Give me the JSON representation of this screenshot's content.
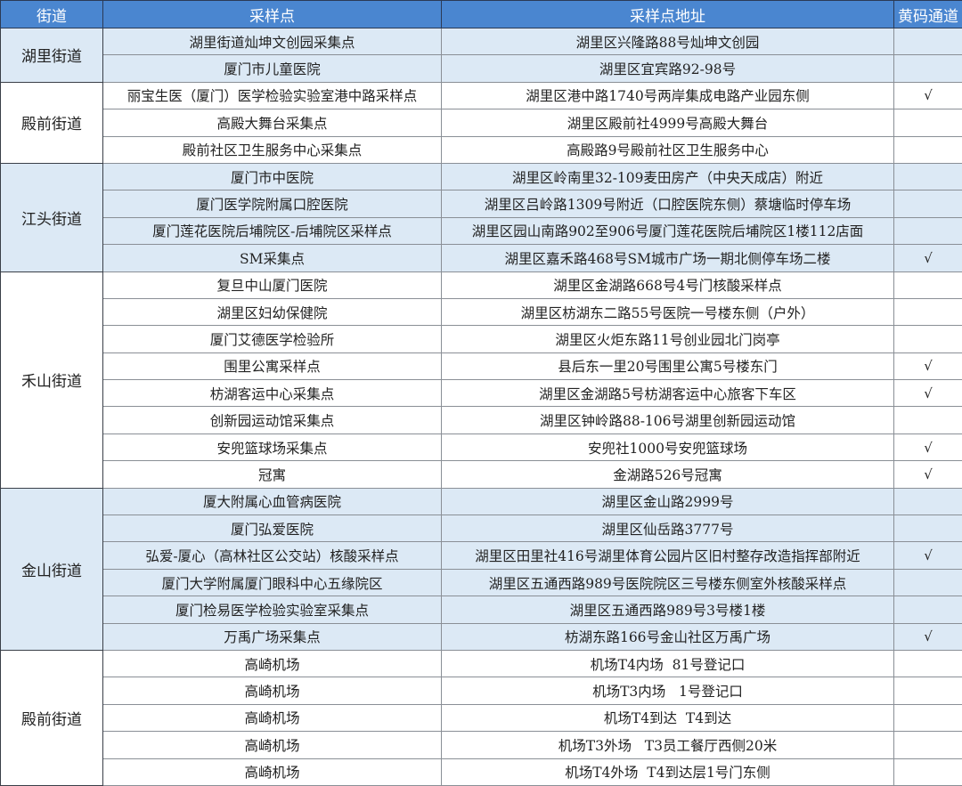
{
  "header": {
    "street": "街道",
    "site": "采样点",
    "address": "采样点地址",
    "yellow_code": "黄码通道"
  },
  "colors": {
    "header_bg": "#4a86d0",
    "highlight_bg": "#dce9f5"
  },
  "check_mark": "√",
  "groups": [
    {
      "street": "湖里街道",
      "highlight": true,
      "rows": [
        {
          "site": "湖里街道灿坤文创园采集点",
          "address": "湖里区兴隆路88号灿坤文创园",
          "yellow": false
        },
        {
          "site": "厦门市儿童医院",
          "address": "湖里区宜宾路92-98号",
          "yellow": false
        }
      ]
    },
    {
      "street": "殿前街道",
      "highlight": false,
      "rows": [
        {
          "site": "丽宝生医（厦门）医学检验实验室港中路采样点",
          "address": "湖里区港中路1740号两岸集成电路产业园东侧",
          "yellow": true
        },
        {
          "site": "高殿大舞台采集点",
          "address": "湖里区殿前社4999号高殿大舞台",
          "yellow": false
        },
        {
          "site": "殿前社区卫生服务中心采集点",
          "address": "高殿路9号殿前社区卫生服务中心",
          "yellow": false
        }
      ]
    },
    {
      "street": "江头街道",
      "highlight": true,
      "rows": [
        {
          "site": "厦门市中医院",
          "address": "湖里区岭南里32-109麦田房产（中央天成店）附近",
          "yellow": false
        },
        {
          "site": "厦门医学院附属口腔医院",
          "address": "湖里区吕岭路1309号附近（口腔医院东侧）蔡塘临时停车场",
          "yellow": false
        },
        {
          "site": "厦门莲花医院后埔院区-后埔院区采样点",
          "address": "湖里区园山南路902至906号厦门莲花医院后埔院区1楼112店面",
          "yellow": false
        },
        {
          "site": "SM采集点",
          "address": "湖里区嘉禾路468号SM城市广场一期北侧停车场二楼",
          "yellow": true
        }
      ]
    },
    {
      "street": "禾山街道",
      "highlight": false,
      "rows": [
        {
          "site": "复旦中山厦门医院",
          "address": "湖里区金湖路668号4号门核酸采样点",
          "yellow": false
        },
        {
          "site": "湖里区妇幼保健院",
          "address": "湖里区枋湖东二路55号医院一号楼东侧（户外）",
          "yellow": false
        },
        {
          "site": "厦门艾德医学检验所",
          "address": "湖里区火炬东路11号创业园北门岗亭",
          "yellow": false
        },
        {
          "site": "围里公寓采样点",
          "address": "县后东一里20号围里公寓5号楼东门",
          "yellow": true
        },
        {
          "site": "枋湖客运中心采集点",
          "address": "湖里区金湖路5号枋湖客运中心旅客下车区",
          "yellow": true
        },
        {
          "site": "创新园运动馆采集点",
          "address": "湖里区钟岭路88-106号湖里创新园运动馆",
          "yellow": false
        },
        {
          "site": "安兜篮球场采集点",
          "address": "安兜社1000号安兜篮球场",
          "yellow": true
        },
        {
          "site": "冠寓",
          "address": "金湖路526号冠寓",
          "yellow": true
        }
      ]
    },
    {
      "street": "金山街道",
      "highlight": true,
      "rows": [
        {
          "site": "厦大附属心血管病医院",
          "address": "湖里区金山路2999号",
          "yellow": false
        },
        {
          "site": "厦门弘爱医院",
          "address": "湖里区仙岳路3777号",
          "yellow": false
        },
        {
          "site": "弘爱-厦心（高林社区公交站）核酸采样点",
          "address": "湖里区田里社416号湖里体育公园片区旧村整存改造指挥部附近",
          "yellow": true
        },
        {
          "site": "厦门大学附属厦门眼科中心五缘院区",
          "address": "湖里区五通西路989号医院院区三号楼东侧室外核酸采样点",
          "yellow": false
        },
        {
          "site": "厦门检易医学检验实验室采集点",
          "address": "湖里区五通西路989号3号楼1楼",
          "yellow": false
        },
        {
          "site": "万禹广场采集点",
          "address": "枋湖东路166号金山社区万禹广场",
          "yellow": true
        }
      ]
    },
    {
      "street": "殿前街道",
      "highlight": false,
      "rows": [
        {
          "site": "高崎机场",
          "address": "机场T4内场  81号登记口",
          "yellow": false
        },
        {
          "site": "高崎机场",
          "address": "机场T3内场   1号登记口",
          "yellow": false
        },
        {
          "site": "高崎机场",
          "address": "机场T4到达  T4到达",
          "yellow": false
        },
        {
          "site": "高崎机场",
          "address": "机场T3外场   T3员工餐厅西侧20米",
          "yellow": false
        },
        {
          "site": "高崎机场",
          "address": "机场T4外场  T4到达层1号门东侧",
          "yellow": false
        }
      ]
    }
  ]
}
